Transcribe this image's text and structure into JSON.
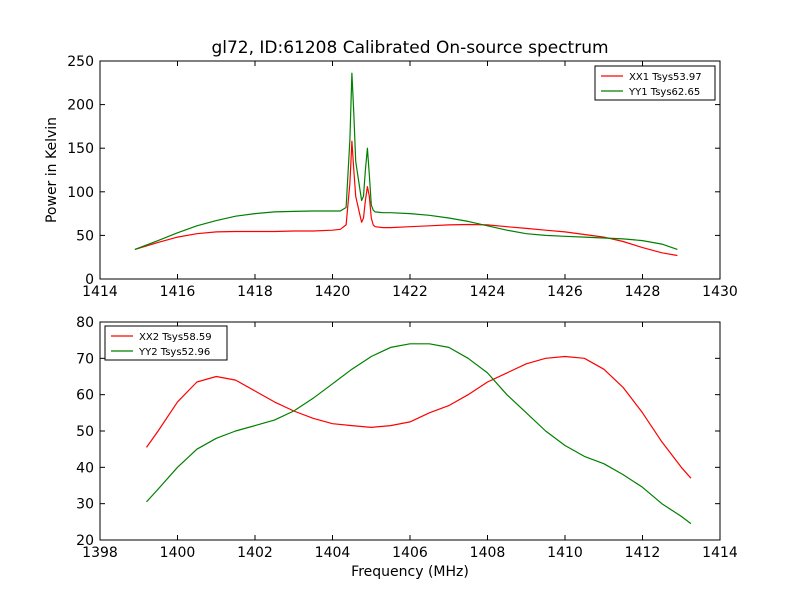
{
  "figure": {
    "title": "gl72, ID:61208 Calibrated On-source spectrum"
  },
  "chart_data": [
    {
      "type": "line",
      "title": "gl72, ID:61208 Calibrated On-source spectrum",
      "xlabel": "",
      "ylabel": "Power in Kelvin",
      "xlim": [
        1414,
        1430
      ],
      "ylim": [
        0,
        250
      ],
      "xticks": [
        1414,
        1416,
        1418,
        1420,
        1422,
        1424,
        1426,
        1428,
        1430
      ],
      "yticks": [
        0,
        50,
        100,
        150,
        200,
        250
      ],
      "grid": false,
      "legend": "top-right",
      "series": [
        {
          "name": "XX1 Tsys53.97",
          "color": "#ff0000",
          "x": [
            1414.9,
            1415.5,
            1416,
            1416.5,
            1417,
            1417.5,
            1418,
            1418.5,
            1419,
            1419.5,
            1420,
            1420.2,
            1420.35,
            1420.45,
            1420.5,
            1420.55,
            1420.6,
            1420.7,
            1420.75,
            1420.8,
            1420.85,
            1420.9,
            1420.95,
            1421.0,
            1421.05,
            1421.1,
            1421.3,
            1421.5,
            1422,
            1422.5,
            1423,
            1423.5,
            1424,
            1424.5,
            1425,
            1425.5,
            1426,
            1426.5,
            1427,
            1427.5,
            1428,
            1428.5,
            1428.9
          ],
          "y": [
            34,
            42,
            48,
            52,
            54,
            54.5,
            54.5,
            54.5,
            55,
            55,
            56,
            57,
            62,
            110,
            158,
            125,
            95,
            75,
            65,
            70,
            90,
            106,
            95,
            70,
            62,
            60,
            59,
            59,
            60,
            61,
            62,
            62.5,
            62,
            60,
            58,
            56,
            54,
            51,
            48,
            43,
            36,
            30,
            27
          ]
        },
        {
          "name": "YY1 Tsys62.65",
          "color": "#008000",
          "x": [
            1414.9,
            1415.5,
            1416,
            1416.5,
            1417,
            1417.5,
            1418,
            1418.5,
            1419,
            1419.5,
            1420,
            1420.2,
            1420.35,
            1420.45,
            1420.5,
            1420.55,
            1420.6,
            1420.7,
            1420.75,
            1420.8,
            1420.85,
            1420.9,
            1420.95,
            1421.0,
            1421.05,
            1421.1,
            1421.3,
            1421.5,
            1422,
            1422.5,
            1423,
            1423.5,
            1424,
            1424.5,
            1425,
            1425.5,
            1426,
            1426.5,
            1427,
            1427.5,
            1428,
            1428.5,
            1428.9
          ],
          "y": [
            34,
            44,
            53,
            61,
            67,
            72,
            75,
            77,
            77.5,
            78,
            78,
            78,
            82,
            160,
            236,
            190,
            135,
            105,
            90,
            95,
            125,
            150,
            120,
            85,
            79,
            77,
            76,
            76,
            75,
            73,
            70,
            66,
            61,
            56,
            52,
            50,
            49,
            48,
            47,
            46,
            44,
            40,
            34
          ]
        }
      ]
    },
    {
      "type": "line",
      "title": "",
      "xlabel": "Frequency (MHz)",
      "ylabel": "",
      "xlim": [
        1398,
        1414
      ],
      "ylim": [
        20,
        80
      ],
      "xticks": [
        1398,
        1400,
        1402,
        1404,
        1406,
        1408,
        1410,
        1412,
        1414
      ],
      "yticks": [
        20,
        30,
        40,
        50,
        60,
        70,
        80
      ],
      "grid": false,
      "legend": "top-left",
      "series": [
        {
          "name": "XX2 Tsys58.59",
          "color": "#ff0000",
          "x": [
            1399.2,
            1399.5,
            1400,
            1400.5,
            1401,
            1401.5,
            1402,
            1402.5,
            1403,
            1403.5,
            1404,
            1404.5,
            1405,
            1405.5,
            1406,
            1406.5,
            1407,
            1407.5,
            1408,
            1408.5,
            1409,
            1409.5,
            1410,
            1410.5,
            1411,
            1411.5,
            1412,
            1412.5,
            1413,
            1413.25
          ],
          "y": [
            45.5,
            50,
            58,
            63.5,
            65,
            64,
            61,
            58,
            55.5,
            53.5,
            52,
            51.5,
            51,
            51.5,
            52.5,
            55,
            57,
            60,
            63.5,
            66,
            68.5,
            70,
            70.5,
            70,
            67,
            62,
            55,
            47,
            40,
            37
          ]
        },
        {
          "name": "YY2 Tsys52.96",
          "color": "#008000",
          "x": [
            1399.2,
            1399.5,
            1400,
            1400.5,
            1401,
            1401.5,
            1402,
            1402.5,
            1403,
            1403.5,
            1404,
            1404.5,
            1405,
            1405.5,
            1406,
            1406.5,
            1407,
            1407.5,
            1408,
            1408.5,
            1409,
            1409.5,
            1410,
            1410.5,
            1411,
            1411.5,
            1412,
            1412.5,
            1413,
            1413.25
          ],
          "y": [
            30.5,
            34,
            40,
            45,
            48,
            50,
            51.5,
            53,
            55.5,
            59,
            63,
            67,
            70.5,
            73,
            74,
            74,
            73,
            70,
            66,
            60,
            55,
            50,
            46,
            43,
            41,
            38,
            34.5,
            30,
            26.5,
            24.5
          ]
        }
      ]
    }
  ]
}
